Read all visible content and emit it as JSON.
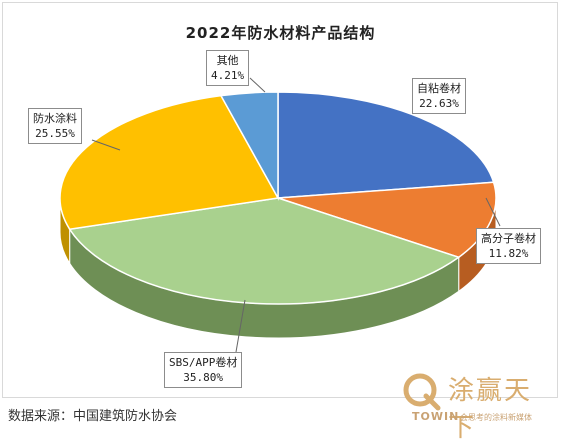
{
  "chart_data": {
    "type": "pie",
    "title": "2022年防水材料产品结构",
    "slices": [
      {
        "name": "自粘卷材",
        "value": 22.63,
        "label": "22.63%",
        "color": "#4472c4",
        "side": "#2f5597"
      },
      {
        "name": "高分子卷材",
        "value": 11.82,
        "label": "11.82%",
        "color": "#ed7d31",
        "side": "#b75d21"
      },
      {
        "name": "SBS/APP卷材",
        "value": 35.8,
        "label": "35.80%",
        "color": "#a9d18e",
        "side": "#6e8f55"
      },
      {
        "name": "防水涂料",
        "value": 25.55,
        "label": "25.55%",
        "color": "#ffc000",
        "side": "#bf9000"
      },
      {
        "name": "其他",
        "value": 4.21,
        "label": "4.21%",
        "color": "#5b9bd5",
        "side": "#3f76a8"
      }
    ]
  },
  "source": "数据来源：中国建筑防水协会",
  "logo": {
    "name": "涂赢天下",
    "brand": "TOWIN",
    "tagline": "会思考的涂料新媒体"
  }
}
